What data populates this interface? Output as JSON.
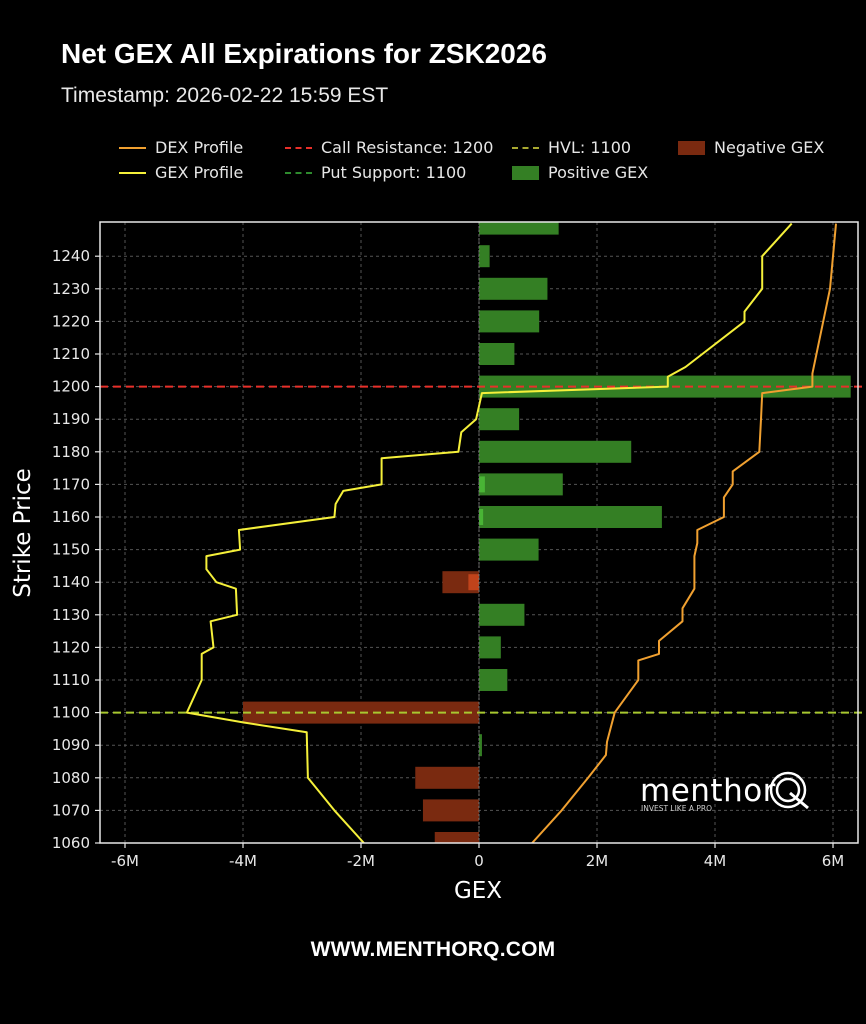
{
  "header": {
    "title": "Net GEX All Expirations for ZSK2026",
    "subtitle": "Timestamp: 2026-02-22 15:59 EST"
  },
  "legend": [
    {
      "label": "DEX Profile",
      "kind": "line",
      "color": "#f0a030"
    },
    {
      "label": "GEX Profile",
      "kind": "line",
      "color": "#f5f03a"
    },
    {
      "label": "Call Resistance: 1200",
      "kind": "dash",
      "color": "#e8302a"
    },
    {
      "label": "Put Support: 1100",
      "kind": "dash",
      "color": "#2e8b2e"
    },
    {
      "label": "HVL: 1100",
      "kind": "dash",
      "color": "#a8a830"
    },
    {
      "label": "Positive GEX",
      "kind": "patch",
      "color": "#347f24"
    },
    {
      "label": "Negative GEX",
      "kind": "patch",
      "color": "#7a2a10"
    }
  ],
  "footer": {
    "website": "WWW.MENTHORQ.COM"
  },
  "watermark": {
    "brand": "menthor",
    "tagline": "INVEST LIKE A PRO"
  },
  "chart_data": {
    "type": "bar",
    "orientation": "horizontal",
    "title": "Net GEX All Expirations for ZSK2026",
    "subtitle": "Timestamp: 2026-02-22 15:59 EST",
    "xlabel": "GEX",
    "ylabel": "Strike Price",
    "xlim": [
      -6.4,
      6.4
    ],
    "ylim": [
      1060,
      1250
    ],
    "x_unit": "M",
    "xticks": [
      -6,
      -4,
      -2,
      0,
      2,
      4,
      6
    ],
    "xtick_labels": [
      "-6M",
      "-4M",
      "-2M",
      "0",
      "2M",
      "4M",
      "6M"
    ],
    "yticks": [
      1060,
      1070,
      1080,
      1090,
      1100,
      1110,
      1120,
      1130,
      1140,
      1150,
      1160,
      1170,
      1180,
      1190,
      1200,
      1210,
      1220,
      1230,
      1240
    ],
    "grid": true,
    "legend_position": "top",
    "categories": [
      1060,
      1070,
      1080,
      1090,
      1100,
      1110,
      1120,
      1130,
      1140,
      1150,
      1160,
      1170,
      1180,
      1190,
      1200,
      1210,
      1220,
      1230,
      1240,
      1250
    ],
    "series": [
      {
        "name": "Net GEX",
        "values": [
          -0.75,
          -0.95,
          -1.08,
          0.05,
          -4.0,
          0.48,
          0.37,
          0.77,
          -0.62,
          1.01,
          3.1,
          1.42,
          2.58,
          0.68,
          6.3,
          0.6,
          1.02,
          1.16,
          0.18,
          1.35
        ]
      },
      {
        "name": "Secondary GEX (overlay)",
        "values": [
          0,
          0,
          0,
          0,
          0,
          0,
          0,
          0,
          -0.18,
          0,
          0.07,
          0.1,
          0,
          0,
          0,
          0,
          0,
          0,
          0,
          0
        ]
      }
    ],
    "lines": [
      {
        "name": "GEX Profile",
        "color": "#f5f03a",
        "points": [
          [
            -1.95,
            1060
          ],
          [
            -2.45,
            1070
          ],
          [
            -2.9,
            1080
          ],
          [
            -2.92,
            1094
          ],
          [
            -4.0,
            1097
          ],
          [
            -4.95,
            1100
          ],
          [
            -4.7,
            1110
          ],
          [
            -4.7,
            1118
          ],
          [
            -4.5,
            1120
          ],
          [
            -4.55,
            1128
          ],
          [
            -4.1,
            1130
          ],
          [
            -4.12,
            1138
          ],
          [
            -4.45,
            1140
          ],
          [
            -4.62,
            1144
          ],
          [
            -4.62,
            1148
          ],
          [
            -4.05,
            1150
          ],
          [
            -4.07,
            1156
          ],
          [
            -2.45,
            1160
          ],
          [
            -2.43,
            1164
          ],
          [
            -2.3,
            1168
          ],
          [
            -1.65,
            1170
          ],
          [
            -1.65,
            1178
          ],
          [
            -0.35,
            1180
          ],
          [
            -0.3,
            1186
          ],
          [
            -0.05,
            1190
          ],
          [
            0.05,
            1198
          ],
          [
            3.2,
            1200
          ],
          [
            3.2,
            1203
          ],
          [
            3.5,
            1206
          ],
          [
            4.5,
            1220
          ],
          [
            4.5,
            1223
          ],
          [
            4.8,
            1230
          ],
          [
            4.8,
            1240
          ],
          [
            5.3,
            1250
          ]
        ]
      },
      {
        "name": "DEX Profile",
        "color": "#f0a030",
        "points": [
          [
            0.9,
            1060
          ],
          [
            1.4,
            1070
          ],
          [
            1.85,
            1080
          ],
          [
            2.15,
            1087
          ],
          [
            2.17,
            1091
          ],
          [
            2.3,
            1100
          ],
          [
            2.7,
            1110
          ],
          [
            2.7,
            1116
          ],
          [
            3.05,
            1118
          ],
          [
            3.05,
            1122
          ],
          [
            3.45,
            1128
          ],
          [
            3.45,
            1132
          ],
          [
            3.65,
            1138
          ],
          [
            3.65,
            1148
          ],
          [
            3.7,
            1152
          ],
          [
            3.7,
            1156
          ],
          [
            4.15,
            1160
          ],
          [
            4.15,
            1166
          ],
          [
            4.3,
            1170
          ],
          [
            4.3,
            1174
          ],
          [
            4.75,
            1180
          ],
          [
            4.78,
            1190
          ],
          [
            4.8,
            1198
          ],
          [
            5.65,
            1200
          ],
          [
            5.65,
            1204
          ],
          [
            5.95,
            1230
          ],
          [
            6.0,
            1240
          ],
          [
            6.05,
            1250
          ]
        ]
      }
    ],
    "reference_lines": [
      {
        "name": "Call Resistance",
        "value": 1200,
        "color": "#e8302a",
        "style": "dashed"
      },
      {
        "name": "Put Support",
        "value": 1100,
        "color": "#2e8b2e",
        "style": "dashed"
      },
      {
        "name": "HVL",
        "value": 1100,
        "color": "#a8c830",
        "style": "dashed"
      }
    ]
  },
  "axis": {
    "xlabel": "GEX",
    "ylabel": "Strike Price",
    "xtick_labels": [
      "-6M",
      "-4M",
      "-2M",
      "0",
      "2M",
      "4M",
      "6M"
    ],
    "ytick_labels": [
      "1060",
      "1070",
      "1080",
      "1090",
      "1100",
      "1110",
      "1120",
      "1130",
      "1140",
      "1150",
      "1160",
      "1170",
      "1180",
      "1190",
      "1200",
      "1210",
      "1220",
      "1230",
      "1240"
    ]
  }
}
